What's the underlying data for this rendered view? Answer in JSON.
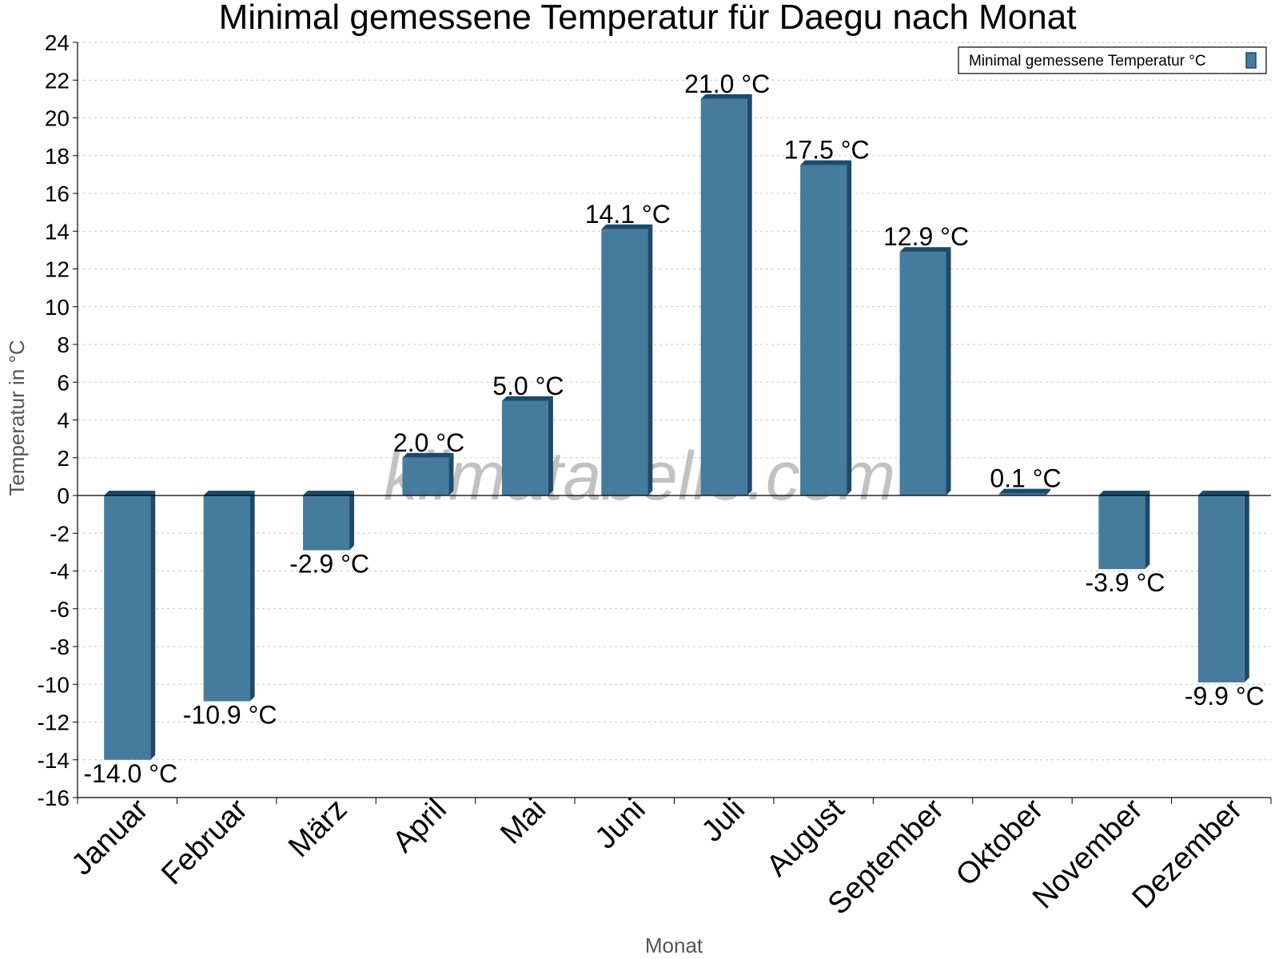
{
  "chart_data": {
    "type": "bar",
    "title": "Minimal gemessene Temperatur für Daegu nach Monat",
    "xlabel": "Monat",
    "ylabel": "Temperatur in °C",
    "ylim": [
      -16,
      24
    ],
    "ytick_step": 2,
    "grid": true,
    "legend_position": "top-right",
    "categories": [
      "Januar",
      "Februar",
      "März",
      "April",
      "Mai",
      "Juni",
      "Juli",
      "August",
      "September",
      "Oktober",
      "November",
      "Dezember"
    ],
    "series": [
      {
        "name": "Minimal gemessene Temperatur °C",
        "values": [
          -14.0,
          -10.9,
          -2.9,
          2.0,
          5.0,
          14.1,
          21.0,
          17.5,
          12.9,
          0.1,
          -3.9,
          -9.9
        ],
        "labels": [
          "-14.0 °C",
          "-10.9 °C",
          "-2.9 °C",
          "2.0 °C",
          "5.0 °C",
          "14.1 °C",
          "21.0 °C",
          "17.5 °C",
          "12.9 °C",
          "0.1 °C",
          "-3.9 °C",
          "-9.9 °C"
        ]
      }
    ],
    "colors": {
      "bar": "#457b9d",
      "bar_dark": "#1d4a6b",
      "grid": "#c8c8c8",
      "axis": "#000000"
    },
    "watermark": "klimatabelle.com"
  }
}
